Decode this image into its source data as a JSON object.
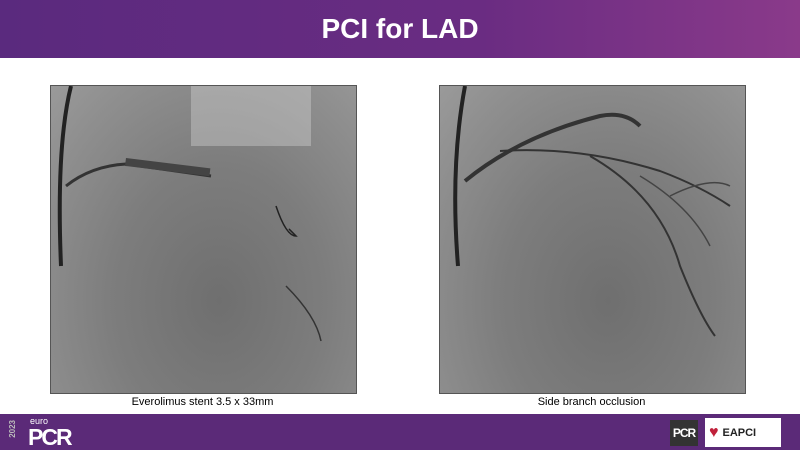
{
  "slide": {
    "title": "PCI for LAD"
  },
  "images": [
    {
      "caption": "Everolimus stent 3.5 x 33mm"
    },
    {
      "caption": "Side branch occlusion"
    }
  ],
  "footer": {
    "logo_year": "2023",
    "logo_prefix": "euro",
    "logo_main": "PCR",
    "partner_logo": "PCR",
    "eapci_logo": "EAPCI"
  },
  "colors": {
    "header": "#5a2a7e",
    "header_end": "#8a3a8a",
    "footer": "#5b2a78"
  }
}
